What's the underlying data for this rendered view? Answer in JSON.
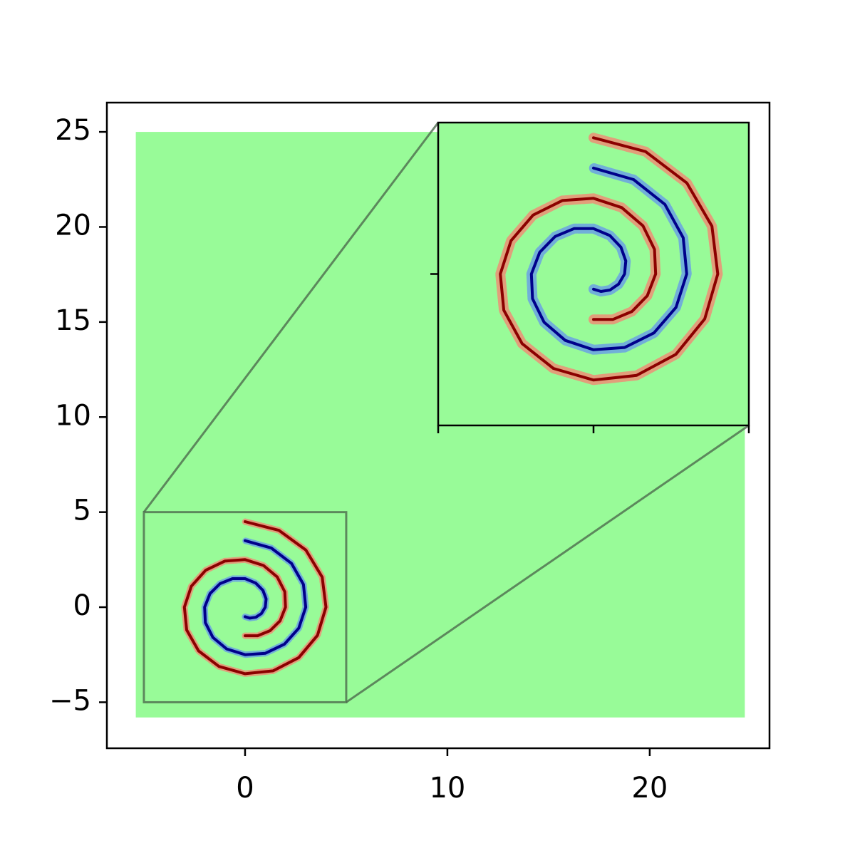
{
  "chart_data": {
    "type": "line",
    "xlim": [
      -6.83,
      25.92
    ],
    "ylim": [
      -7.42,
      26.54
    ],
    "xticks": [
      0,
      10,
      20
    ],
    "yticks": [
      {
        "value": -5,
        "label": "−5"
      },
      0,
      5,
      10,
      15,
      20,
      25
    ],
    "noise": {
      "color": "#98fb98",
      "xlim": [
        -5.4,
        24.7
      ],
      "ylim": [
        -5.8,
        25
      ]
    },
    "series": [
      {
        "color": "#00008b",
        "point_color": "#6495ed",
        "x": [
          0,
          0.239,
          0.53,
          0.808,
          1,
          1.039,
          0.884,
          0.526,
          0,
          -0.622,
          -1.237,
          -1.732,
          -2,
          -1.963,
          -1.591,
          -0.909,
          0,
          1.005,
          1.945,
          2.656,
          3,
          2.887,
          2.298,
          1.292,
          0
        ],
        "values": [
          -0.5,
          -0.577,
          -0.53,
          -0.335,
          0,
          0.431,
          0.884,
          1.27,
          1.5,
          1.501,
          1.237,
          0.718,
          0,
          -0.813,
          -1.591,
          -2.194,
          -2.5,
          -2.425,
          -1.945,
          -1.1,
          0,
          1.196,
          2.298,
          3.118,
          3.5
        ]
      },
      {
        "color": "#8b0000",
        "point_color": "#fa8072",
        "x": [
          0,
          0.622,
          1.237,
          1.732,
          2,
          1.963,
          1.591,
          0.909,
          0,
          -1.005,
          -1.945,
          -2.656,
          -3,
          -2.887,
          -2.298,
          -1.292,
          0,
          1.387,
          2.652,
          3.58,
          4,
          3.811,
          3.005,
          1.674,
          0
        ],
        "values": [
          -1.5,
          -1.501,
          -1.237,
          -0.718,
          0,
          0.813,
          1.591,
          2.194,
          2.5,
          2.425,
          1.945,
          1.1,
          0,
          -1.196,
          -2.298,
          -3.118,
          -3.5,
          -3.349,
          -2.652,
          -1.483,
          0,
          1.579,
          3.005,
          4.042,
          4.5
        ]
      }
    ],
    "inset": {
      "xlim": [
        -5,
        5
      ],
      "ylim": [
        -5,
        5
      ],
      "xticks": [
        -5,
        0,
        5
      ],
      "yticks": [
        0
      ]
    }
  }
}
